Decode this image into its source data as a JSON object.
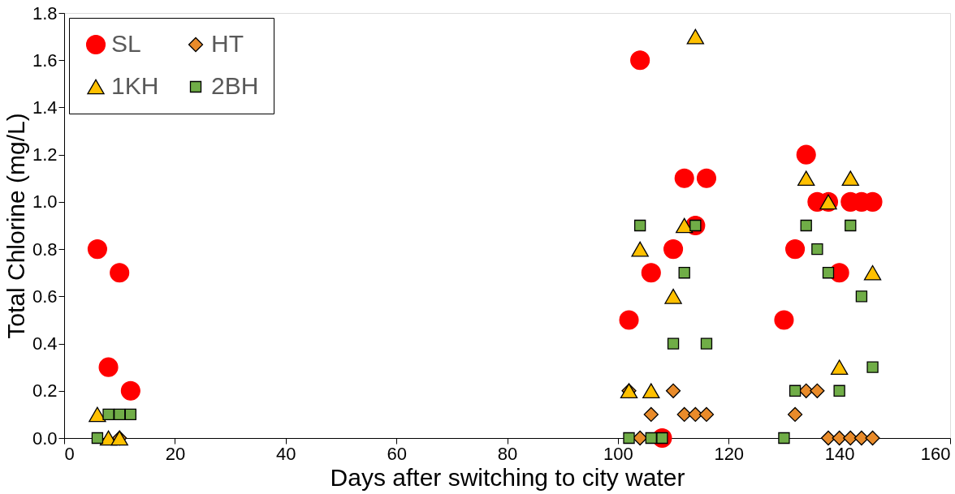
{
  "chart_data": {
    "type": "scatter",
    "xlabel": "Days after switching to city water",
    "ylabel": "Total Chlorine (mg/L)",
    "xlim": [
      0,
      160
    ],
    "xticks": [
      0,
      20,
      40,
      60,
      80,
      100,
      120,
      140,
      160
    ],
    "ylim": [
      0,
      1.8
    ],
    "yticks": [
      {
        "value": 0,
        "label": "0.0"
      },
      0.2,
      0.4,
      0.6,
      0.8,
      {
        "value": 1,
        "label": "1.0"
      },
      1.2,
      1.4,
      1.6,
      1.8
    ],
    "grid": false,
    "legend": "top left",
    "series": [
      {
        "name": "SL",
        "color": "#ff0000",
        "marker": "circle",
        "x": [
          6,
          8,
          10,
          12,
          102,
          104,
          106,
          108,
          110,
          112,
          114,
          116,
          130,
          132,
          134,
          136,
          138,
          140,
          142,
          144,
          146
        ],
        "values": [
          0.8,
          0.3,
          0.7,
          0.2,
          0.5,
          1.6,
          0.7,
          0,
          0.8,
          1.1,
          0.9,
          1.1,
          0.5,
          0.8,
          1.2,
          1.0,
          1.0,
          0.7,
          1.0,
          1.0,
          1.0
        ]
      },
      {
        "name": "HT",
        "color": "#e98b2a",
        "marker": "diamond",
        "x": [
          10,
          102,
          104,
          106,
          110,
          112,
          114,
          116,
          132,
          134,
          136,
          138,
          140,
          142,
          144,
          146
        ],
        "values": [
          0,
          0.2,
          0,
          0.1,
          0.2,
          0.1,
          0.1,
          0.1,
          0.1,
          0.2,
          0.2,
          0,
          0,
          0,
          0,
          0
        ]
      },
      {
        "name": "1KH",
        "color": "#ffc000",
        "marker": "triangle",
        "x": [
          6,
          8,
          10,
          102,
          104,
          106,
          110,
          112,
          114,
          134,
          138,
          140,
          142,
          146
        ],
        "values": [
          0.1,
          0,
          0,
          0.2,
          0.8,
          0.2,
          0.6,
          0.9,
          1.7,
          1.1,
          1.0,
          0.3,
          1.1,
          0.7
        ]
      },
      {
        "name": "2BH",
        "color": "#70ad47",
        "marker": "square",
        "x": [
          6,
          8,
          10,
          12,
          102,
          104,
          106,
          108,
          110,
          112,
          114,
          116,
          130,
          132,
          134,
          136,
          138,
          140,
          142,
          144,
          146
        ],
        "values": [
          0,
          0.1,
          0.1,
          0.1,
          0,
          0.9,
          0,
          0,
          0.4,
          0.7,
          0.9,
          0.4,
          0,
          0.2,
          0.9,
          0.8,
          0.7,
          0.2,
          0.9,
          0.6,
          0.3
        ]
      }
    ]
  }
}
